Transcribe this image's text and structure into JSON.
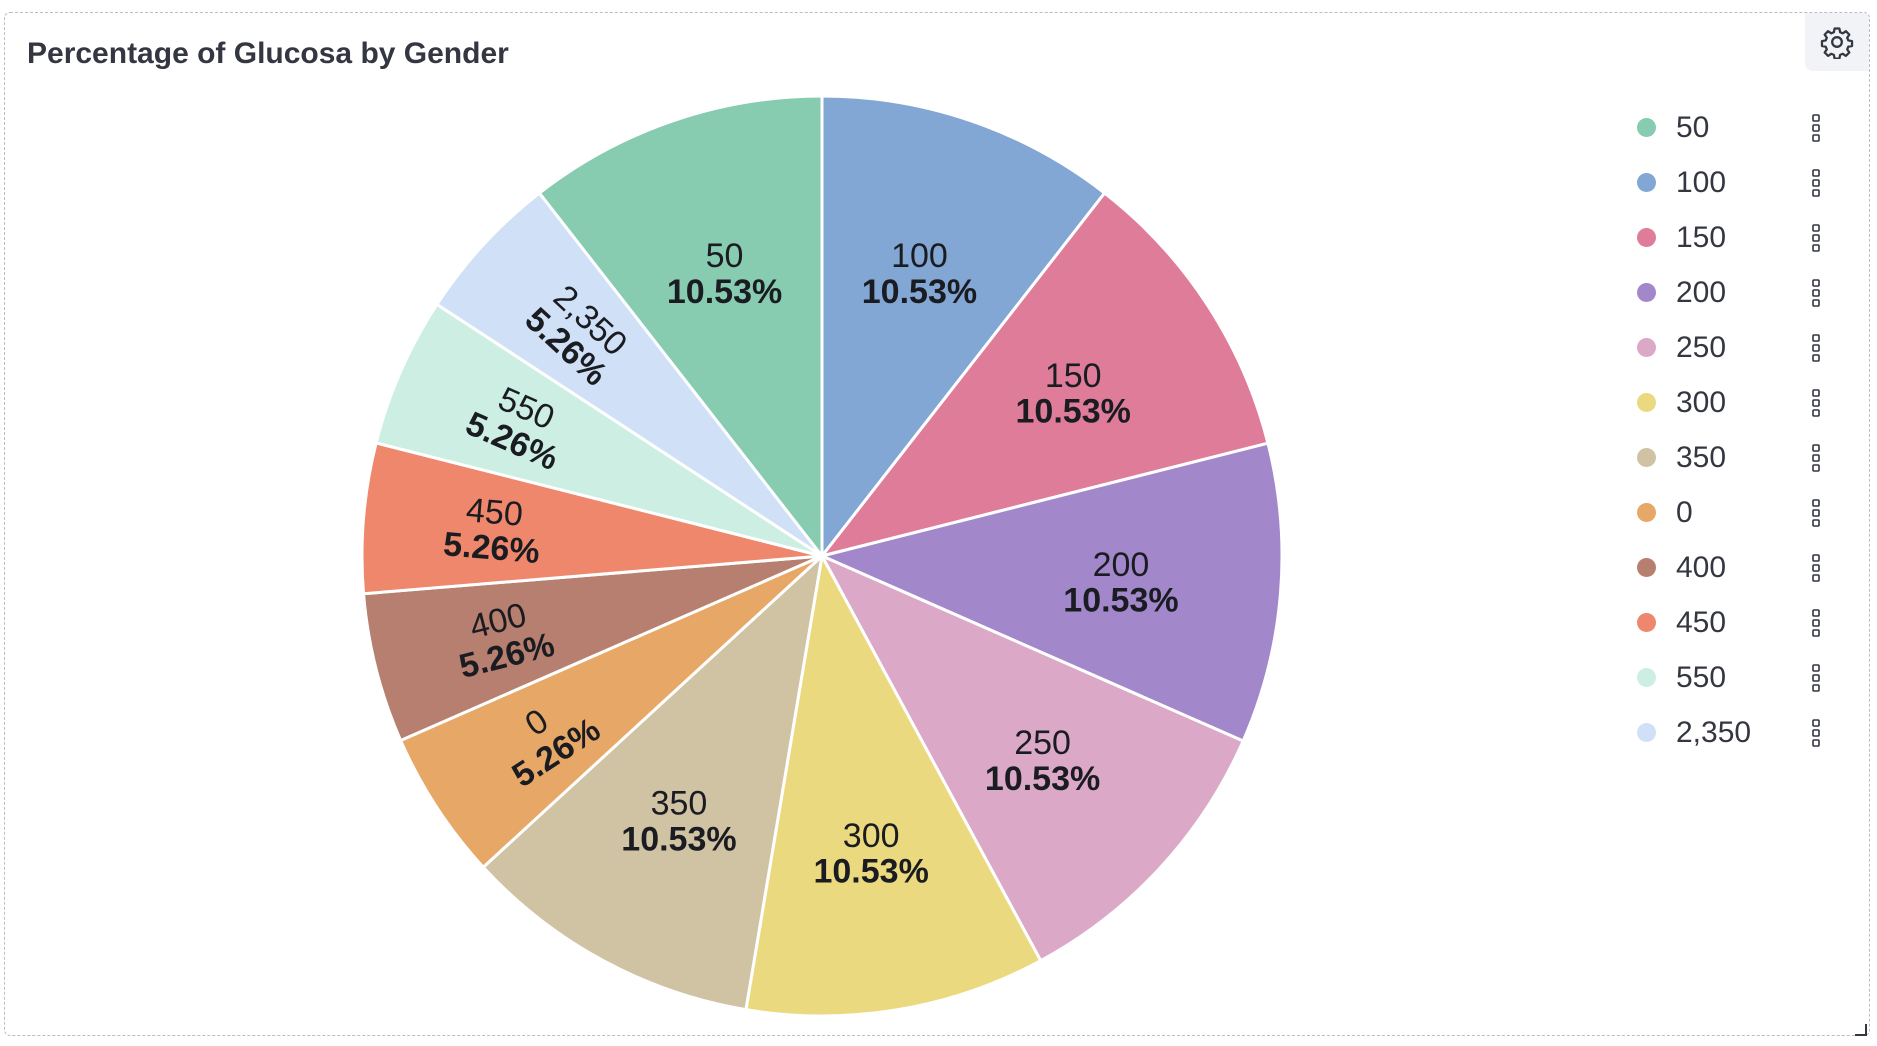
{
  "panel": {
    "title": "Percentage of Glucosa by Gender"
  },
  "icons": {
    "settings": "gear-icon",
    "legend_action": "vertical-dots-icon"
  },
  "chart_data": {
    "type": "pie",
    "title": "Percentage of Glucosa by Gender",
    "legend_position": "right",
    "slices": [
      {
        "label": "100",
        "value": 10.53,
        "percent_label": "10.53%",
        "color": "#82a7d4"
      },
      {
        "label": "150",
        "value": 10.53,
        "percent_label": "10.53%",
        "color": "#de7c9a"
      },
      {
        "label": "200",
        "value": 10.53,
        "percent_label": "10.53%",
        "color": "#a288ca"
      },
      {
        "label": "250",
        "value": 10.53,
        "percent_label": "10.53%",
        "color": "#dba9c7"
      },
      {
        "label": "300",
        "value": 10.53,
        "percent_label": "10.53%",
        "color": "#ebd97f"
      },
      {
        "label": "350",
        "value": 10.53,
        "percent_label": "10.53%",
        "color": "#d0c3a3"
      },
      {
        "label": "0",
        "value": 5.26,
        "percent_label": "5.26%",
        "color": "#e7a867"
      },
      {
        "label": "400",
        "value": 5.26,
        "percent_label": "5.26%",
        "color": "#b77f6f"
      },
      {
        "label": "450",
        "value": 5.26,
        "percent_label": "5.26%",
        "color": "#ee876b"
      },
      {
        "label": "550",
        "value": 5.26,
        "percent_label": "5.26%",
        "color": "#cdefe3"
      },
      {
        "label": "2,350",
        "value": 5.26,
        "percent_label": "5.26%",
        "color": "#d0e1f7"
      },
      {
        "label": "50",
        "value": 10.53,
        "percent_label": "10.53%",
        "color": "#87cbb1"
      }
    ],
    "legend": [
      {
        "label": "50",
        "color": "#87cbb1"
      },
      {
        "label": "100",
        "color": "#82a7d4"
      },
      {
        "label": "150",
        "color": "#de7c9a"
      },
      {
        "label": "200",
        "color": "#a288ca"
      },
      {
        "label": "250",
        "color": "#dba9c7"
      },
      {
        "label": "300",
        "color": "#ebd97f"
      },
      {
        "label": "350",
        "color": "#d0c3a3"
      },
      {
        "label": "0",
        "color": "#e7a867"
      },
      {
        "label": "400",
        "color": "#b77f6f"
      },
      {
        "label": "450",
        "color": "#ee876b"
      },
      {
        "label": "550",
        "color": "#cdefe3"
      },
      {
        "label": "2,350",
        "color": "#d0e1f7"
      }
    ]
  }
}
